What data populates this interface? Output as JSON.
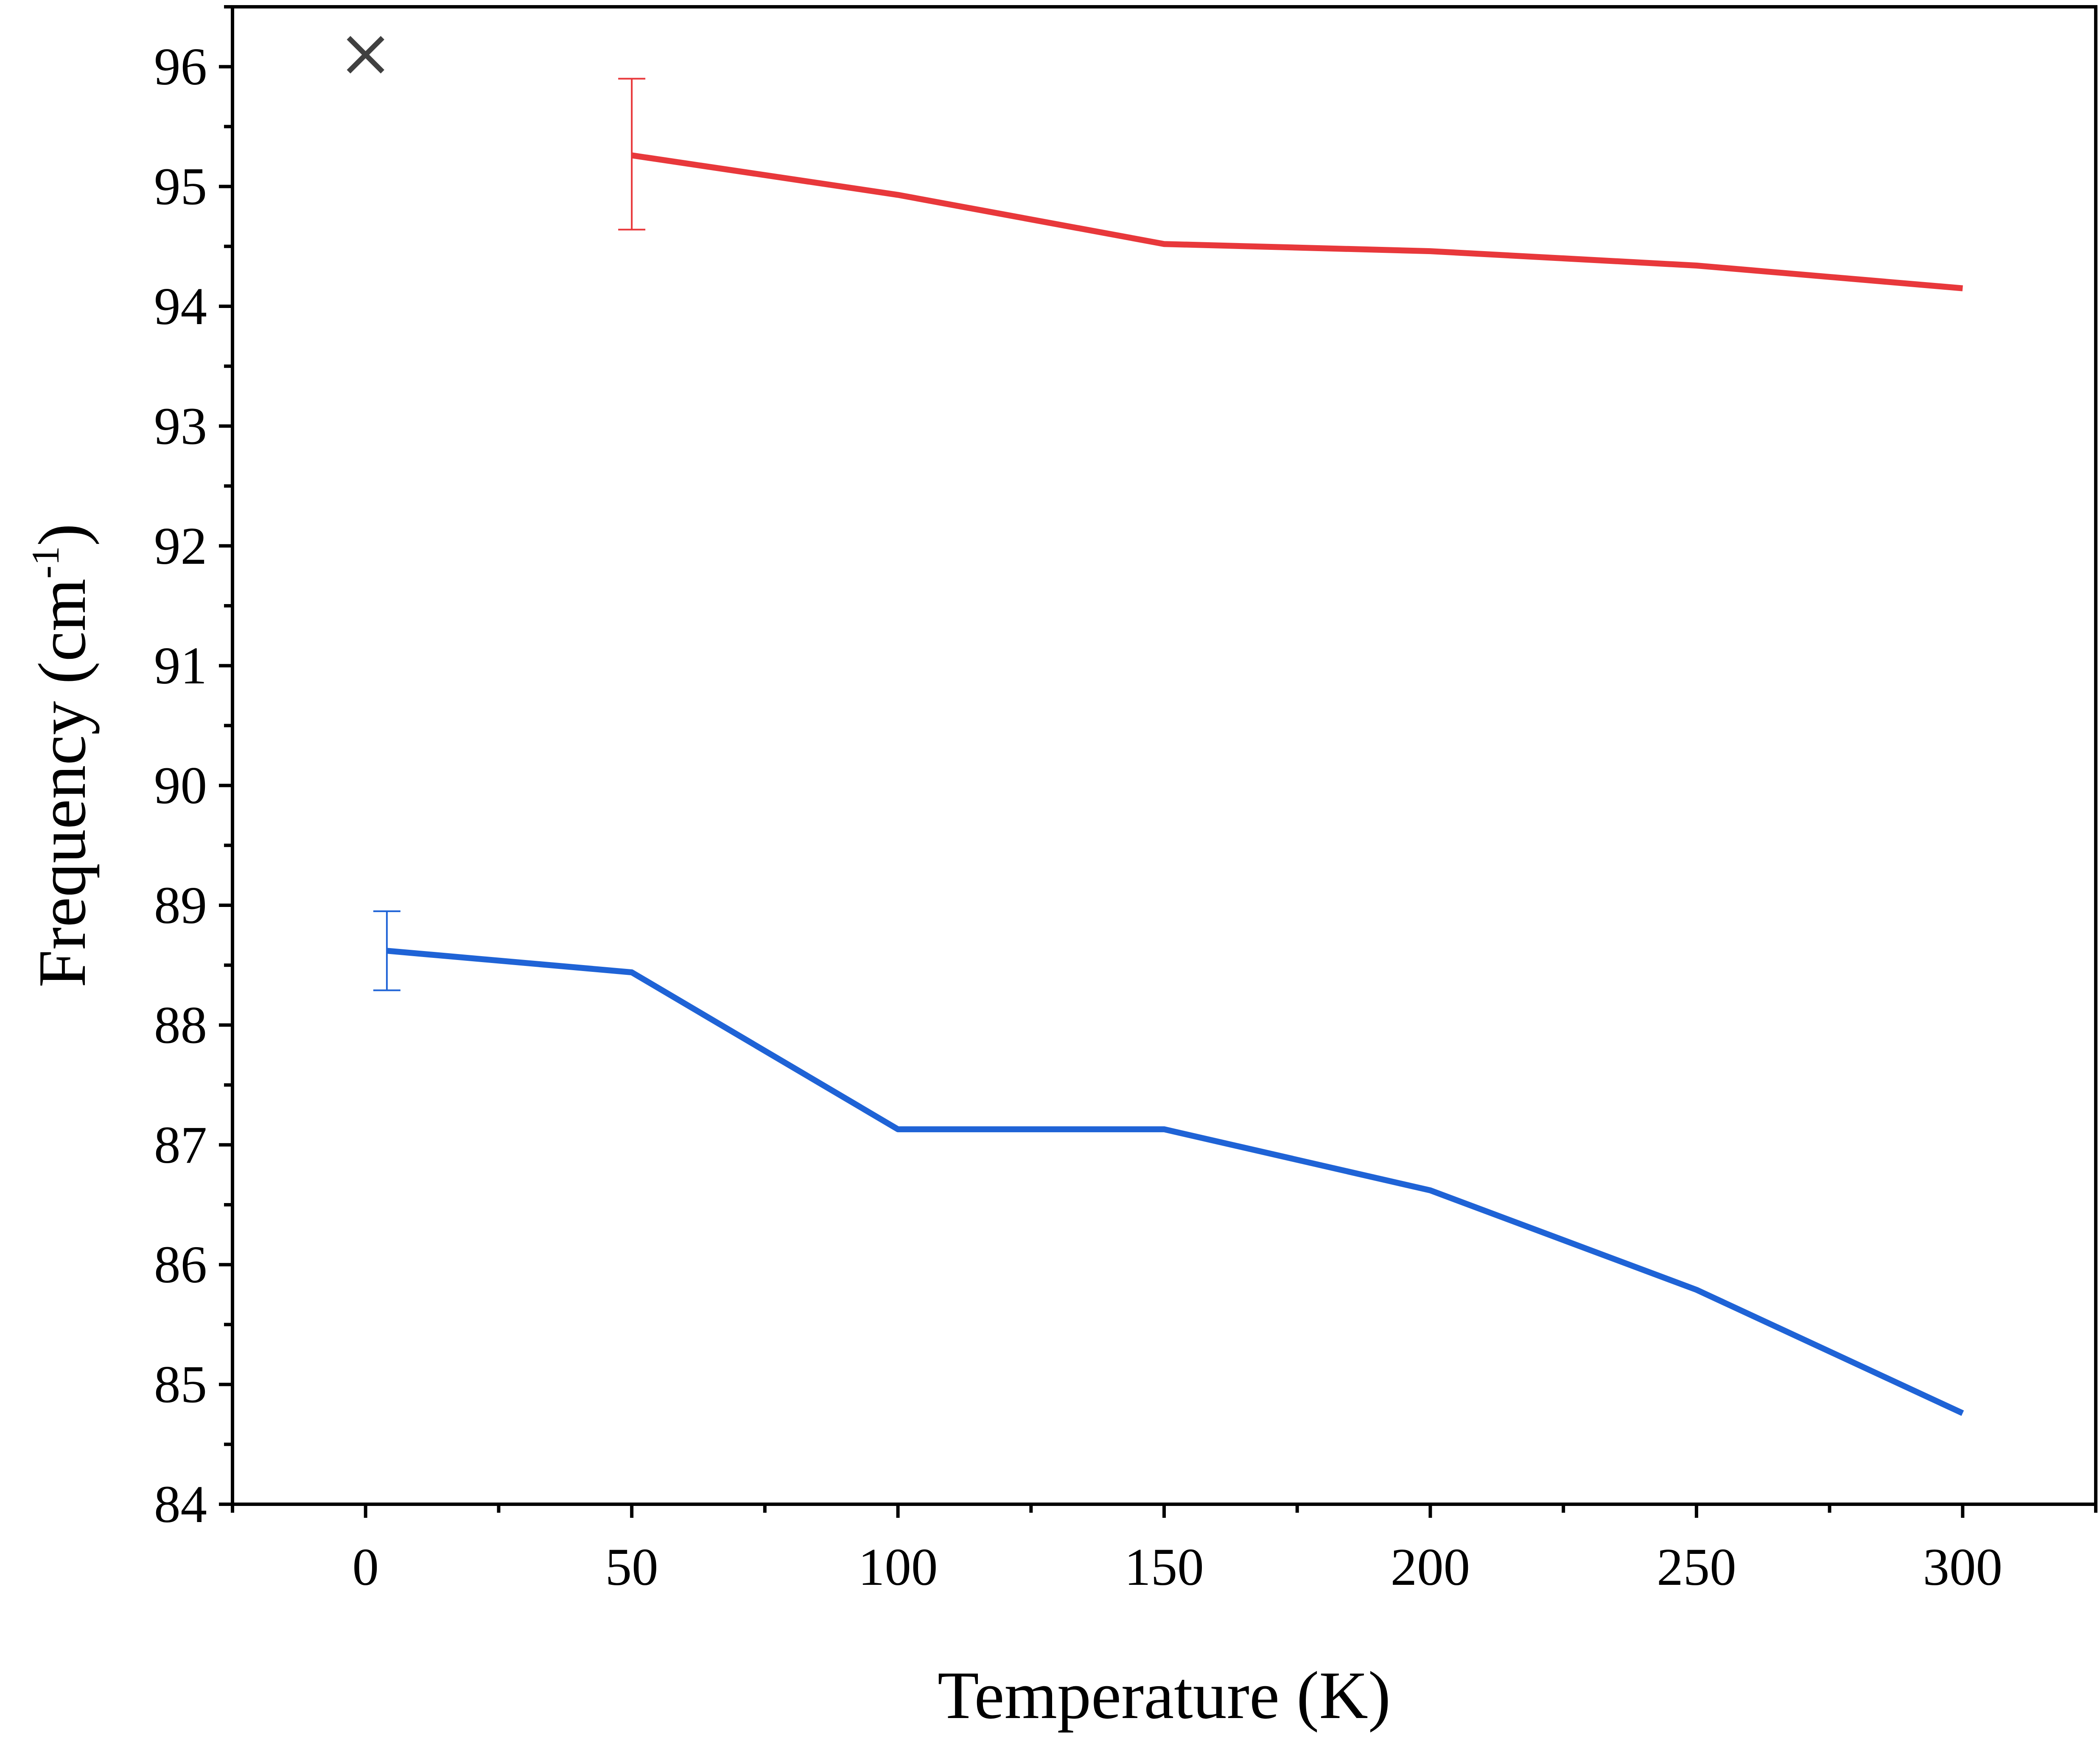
{
  "chart_data": {
    "type": "line",
    "title": "",
    "xlabel": "Temperature (K)",
    "ylabel": {
      "prefix": "Frequency (cm",
      "superscript": "-1",
      "suffix": ")"
    },
    "xlim": [
      -25,
      325
    ],
    "ylim": [
      84,
      96.5
    ],
    "x_ticks": [
      0,
      50,
      100,
      150,
      200,
      250,
      300
    ],
    "x_minor_step": 25,
    "y_ticks": [
      84,
      85,
      86,
      87,
      88,
      89,
      90,
      91,
      92,
      93,
      94,
      95,
      96
    ],
    "y_minor_step": 0.5,
    "grid": false,
    "legend": "none",
    "series": [
      {
        "color": "#e8383b",
        "x": [
          50,
          100,
          150,
          200,
          250,
          300
        ],
        "y": [
          95.26,
          94.93,
          94.52,
          94.46,
          94.34,
          94.15
        ],
        "error_bar": {
          "x": 50,
          "low": 94.64,
          "high": 95.9
        }
      },
      {
        "color": "#1f63d6",
        "x": [
          4,
          50,
          100,
          150,
          200,
          250,
          300
        ],
        "y": [
          88.62,
          88.44,
          87.13,
          87.13,
          86.62,
          85.79,
          84.76
        ],
        "error_bar": {
          "x": 4,
          "low": 88.29,
          "high": 88.95
        }
      }
    ],
    "marker": {
      "symbol": "×",
      "x": 0,
      "y": 96.1,
      "color": "#404040"
    }
  }
}
